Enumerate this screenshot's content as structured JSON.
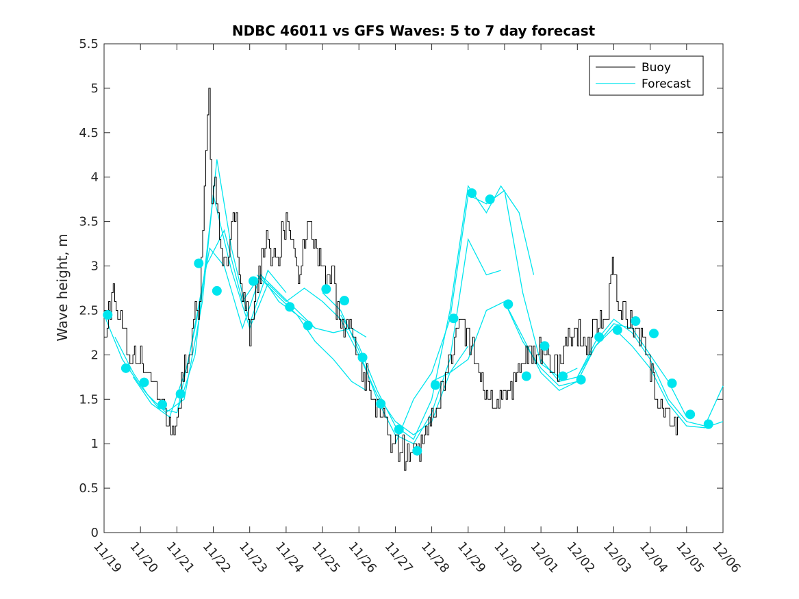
{
  "chart_data": {
    "type": "line",
    "title": "NDBC 46011 vs GFS Waves: 5 to 7 day forecast",
    "xlabel": "",
    "ylabel": "Wave height, m",
    "xlim": [
      0,
      17
    ],
    "ylim": [
      0,
      5.5
    ],
    "xticks": [
      "11/19",
      "11/20",
      "11/21",
      "11/22",
      "11/23",
      "11/24",
      "11/25",
      "11/26",
      "11/27",
      "11/28",
      "11/29",
      "11/30",
      "12/01",
      "12/02",
      "12/03",
      "12/04",
      "12/05",
      "12/06"
    ],
    "yticks": [
      "0",
      "0.5",
      "1",
      "1.5",
      "2",
      "2.5",
      "3",
      "3.5",
      "4",
      "4.5",
      "5",
      "5.5"
    ],
    "legend": [
      "Buoy",
      "Forecast"
    ],
    "legend_position": "top-right",
    "colors": {
      "buoy": "#000000",
      "forecast": "#00e5ee",
      "axis": "#262626"
    },
    "buoy_anchors": [
      [
        0.0,
        2.2
      ],
      [
        0.15,
        2.5
      ],
      [
        0.25,
        2.8
      ],
      [
        0.4,
        2.5
      ],
      [
        0.55,
        2.2
      ],
      [
        0.7,
        2.0
      ],
      [
        0.85,
        2.0
      ],
      [
        1.0,
        1.9
      ],
      [
        1.2,
        1.8
      ],
      [
        1.4,
        1.6
      ],
      [
        1.6,
        1.45
      ],
      [
        1.75,
        1.3
      ],
      [
        1.9,
        1.25
      ],
      [
        2.05,
        1.3
      ],
      [
        2.15,
        1.8
      ],
      [
        2.3,
        2.0
      ],
      [
        2.45,
        2.3
      ],
      [
        2.6,
        2.6
      ],
      [
        2.7,
        3.4
      ],
      [
        2.8,
        4.3
      ],
      [
        2.88,
        5.1
      ],
      [
        2.95,
        3.6
      ],
      [
        3.05,
        4.0
      ],
      [
        3.15,
        3.4
      ],
      [
        3.3,
        3.0
      ],
      [
        3.45,
        3.3
      ],
      [
        3.6,
        3.6
      ],
      [
        3.75,
        2.8
      ],
      [
        3.9,
        2.6
      ],
      [
        4.0,
        2.2
      ],
      [
        4.15,
        2.6
      ],
      [
        4.3,
        3.0
      ],
      [
        4.45,
        3.3
      ],
      [
        4.6,
        3.1
      ],
      [
        4.75,
        3.0
      ],
      [
        4.9,
        3.4
      ],
      [
        5.05,
        3.6
      ],
      [
        5.2,
        3.2
      ],
      [
        5.35,
        2.9
      ],
      [
        5.5,
        3.3
      ],
      [
        5.65,
        3.5
      ],
      [
        5.8,
        3.2
      ],
      [
        5.95,
        3.0
      ],
      [
        6.1,
        2.8
      ],
      [
        6.25,
        3.0
      ],
      [
        6.4,
        2.5
      ],
      [
        6.55,
        2.3
      ],
      [
        6.7,
        2.4
      ],
      [
        6.85,
        2.1
      ],
      [
        7.0,
        1.9
      ],
      [
        7.15,
        1.8
      ],
      [
        7.3,
        1.6
      ],
      [
        7.45,
        1.4
      ],
      [
        7.6,
        1.35
      ],
      [
        7.75,
        1.2
      ],
      [
        7.9,
        1.05
      ],
      [
        8.05,
        0.95
      ],
      [
        8.25,
        0.9
      ],
      [
        8.45,
        0.88
      ],
      [
        8.6,
        0.9
      ],
      [
        8.75,
        1.05
      ],
      [
        8.9,
        1.2
      ],
      [
        9.05,
        1.35
      ],
      [
        9.2,
        1.5
      ],
      [
        9.35,
        1.7
      ],
      [
        9.5,
        1.95
      ],
      [
        9.65,
        2.2
      ],
      [
        9.8,
        2.35
      ],
      [
        9.95,
        2.15
      ],
      [
        10.1,
        2.1
      ],
      [
        10.25,
        1.9
      ],
      [
        10.4,
        1.6
      ],
      [
        10.55,
        1.5
      ],
      [
        10.7,
        1.45
      ],
      [
        10.85,
        1.5
      ],
      [
        11.0,
        1.55
      ],
      [
        11.15,
        1.6
      ],
      [
        11.3,
        1.7
      ],
      [
        11.45,
        1.85
      ],
      [
        11.6,
        2.0
      ],
      [
        11.75,
        2.1
      ],
      [
        11.9,
        2.0
      ],
      [
        12.05,
        2.1
      ],
      [
        12.2,
        1.95
      ],
      [
        12.35,
        1.8
      ],
      [
        12.5,
        1.85
      ],
      [
        12.65,
        2.05
      ],
      [
        12.8,
        2.25
      ],
      [
        12.95,
        2.3
      ],
      [
        13.1,
        2.2
      ],
      [
        13.25,
        2.1
      ],
      [
        13.4,
        2.2
      ],
      [
        13.55,
        2.35
      ],
      [
        13.7,
        2.3
      ],
      [
        13.85,
        2.55
      ],
      [
        13.95,
        3.1
      ],
      [
        14.05,
        2.7
      ],
      [
        14.2,
        2.5
      ],
      [
        14.35,
        2.45
      ],
      [
        14.5,
        2.4
      ],
      [
        14.65,
        2.25
      ],
      [
        14.8,
        2.1
      ],
      [
        14.95,
        1.9
      ],
      [
        15.1,
        1.7
      ],
      [
        15.25,
        1.5
      ],
      [
        15.4,
        1.35
      ],
      [
        15.55,
        1.3
      ],
      [
        15.7,
        1.2
      ],
      [
        15.82,
        1.15
      ]
    ],
    "forecast_series": [
      [
        [
          0.0,
          2.45
        ],
        [
          0.5,
          1.95
        ],
        [
          1.0,
          1.65
        ],
        [
          1.5,
          1.4
        ],
        [
          2.0,
          1.35
        ],
        [
          2.5,
          2.0
        ],
        [
          3.0,
          3.8
        ],
        [
          3.5,
          2.95
        ],
        [
          4.0,
          2.3
        ],
        [
          4.5,
          2.8
        ],
        [
          5.0,
          2.6
        ]
      ],
      [
        [
          0.3,
          2.2
        ],
        [
          0.8,
          1.8
        ],
        [
          1.2,
          1.55
        ],
        [
          1.7,
          1.35
        ],
        [
          2.2,
          1.5
        ],
        [
          2.7,
          2.6
        ],
        [
          3.1,
          4.2
        ],
        [
          3.5,
          3.2
        ],
        [
          4.0,
          2.35
        ],
        [
          4.5,
          2.95
        ],
        [
          5.0,
          2.7
        ]
      ],
      [
        [
          0.8,
          1.75
        ],
        [
          1.3,
          1.45
        ],
        [
          1.8,
          1.3
        ],
        [
          2.3,
          1.9
        ],
        [
          2.8,
          3.0
        ],
        [
          3.3,
          3.4
        ],
        [
          3.8,
          2.6
        ],
        [
          4.3,
          2.9
        ],
        [
          4.8,
          2.7
        ],
        [
          5.3,
          2.5
        ],
        [
          5.8,
          2.3
        ]
      ],
      [
        [
          2.0,
          1.35
        ],
        [
          2.5,
          2.3
        ],
        [
          2.9,
          3.2
        ],
        [
          3.3,
          3.0
        ],
        [
          3.8,
          2.3
        ],
        [
          4.3,
          2.9
        ],
        [
          4.8,
          2.6
        ],
        [
          5.3,
          2.45
        ],
        [
          5.8,
          2.3
        ],
        [
          6.3,
          2.25
        ],
        [
          6.8,
          2.3
        ],
        [
          7.2,
          2.2
        ]
      ],
      [
        [
          4.2,
          2.9
        ],
        [
          4.8,
          2.65
        ],
        [
          5.3,
          2.45
        ],
        [
          5.8,
          2.15
        ],
        [
          6.3,
          1.95
        ],
        [
          6.8,
          1.7
        ],
        [
          7.2,
          1.6
        ]
      ],
      [
        [
          5.0,
          2.6
        ],
        [
          5.5,
          2.75
        ],
        [
          6.0,
          2.6
        ],
        [
          6.5,
          2.4
        ],
        [
          7.0,
          2.0
        ],
        [
          7.5,
          1.55
        ],
        [
          8.0,
          1.25
        ],
        [
          8.5,
          1.1
        ],
        [
          9.0,
          1.25
        ],
        [
          9.5,
          1.8
        ],
        [
          10.0,
          2.1
        ]
      ],
      [
        [
          6.0,
          2.7
        ],
        [
          6.5,
          2.5
        ],
        [
          7.0,
          2.05
        ],
        [
          7.5,
          1.5
        ],
        [
          8.0,
          1.1
        ],
        [
          8.5,
          1.0
        ],
        [
          9.0,
          1.35
        ],
        [
          9.5,
          1.95
        ],
        [
          10.0,
          3.3
        ],
        [
          10.5,
          2.9
        ],
        [
          10.9,
          2.95
        ]
      ],
      [
        [
          6.5,
          2.45
        ],
        [
          7.0,
          2.1
        ],
        [
          7.5,
          1.6
        ],
        [
          8.0,
          1.2
        ],
        [
          8.5,
          1.05
        ],
        [
          9.0,
          1.5
        ],
        [
          9.5,
          2.5
        ],
        [
          10.0,
          3.9
        ],
        [
          10.5,
          3.6
        ],
        [
          10.9,
          3.9
        ],
        [
          11.4,
          3.6
        ],
        [
          11.8,
          2.9
        ]
      ],
      [
        [
          8.0,
          1.0
        ],
        [
          8.5,
          1.5
        ],
        [
          9.0,
          1.8
        ],
        [
          9.5,
          2.4
        ],
        [
          10.0,
          3.8
        ],
        [
          10.5,
          3.7
        ],
        [
          11.0,
          3.85
        ],
        [
          11.5,
          2.7
        ],
        [
          12.0,
          1.9
        ],
        [
          12.5,
          1.75
        ],
        [
          13.0,
          1.85
        ]
      ],
      [
        [
          9.0,
          1.7
        ],
        [
          9.5,
          1.8
        ],
        [
          10.0,
          1.95
        ],
        [
          10.5,
          2.5
        ],
        [
          11.0,
          2.6
        ],
        [
          11.5,
          2.15
        ],
        [
          12.0,
          1.85
        ],
        [
          12.5,
          1.65
        ],
        [
          13.0,
          1.7
        ],
        [
          13.5,
          2.1
        ],
        [
          14.0,
          2.35
        ]
      ],
      [
        [
          11.0,
          2.6
        ],
        [
          11.5,
          2.2
        ],
        [
          12.0,
          1.8
        ],
        [
          12.5,
          1.6
        ],
        [
          13.0,
          1.7
        ],
        [
          13.5,
          2.1
        ],
        [
          14.0,
          2.35
        ],
        [
          14.5,
          2.3
        ],
        [
          15.0,
          2.0
        ],
        [
          15.5,
          1.7
        ],
        [
          16.0,
          1.3
        ]
      ],
      [
        [
          12.0,
          1.95
        ],
        [
          12.5,
          1.7
        ],
        [
          13.0,
          1.75
        ],
        [
          13.5,
          2.15
        ],
        [
          14.0,
          2.4
        ],
        [
          14.5,
          2.25
        ],
        [
          15.0,
          1.95
        ],
        [
          15.5,
          1.5
        ],
        [
          16.0,
          1.25
        ],
        [
          16.5,
          1.2
        ],
        [
          17.0,
          1.65
        ]
      ],
      [
        [
          13.0,
          1.75
        ],
        [
          13.5,
          2.1
        ],
        [
          14.0,
          2.3
        ],
        [
          14.5,
          2.1
        ],
        [
          15.0,
          1.85
        ],
        [
          15.5,
          1.45
        ],
        [
          16.0,
          1.2
        ],
        [
          16.5,
          1.18
        ],
        [
          17.0,
          1.25
        ]
      ]
    ],
    "forecast_markers": [
      [
        0.1,
        2.45
      ],
      [
        0.6,
        1.85
      ],
      [
        1.1,
        1.69
      ],
      [
        1.6,
        1.44
      ],
      [
        2.1,
        1.56
      ],
      [
        2.6,
        3.03
      ],
      [
        3.1,
        2.72
      ],
      [
        4.1,
        2.83
      ],
      [
        5.1,
        2.54
      ],
      [
        5.6,
        2.33
      ],
      [
        6.1,
        2.74
      ],
      [
        6.6,
        2.61
      ],
      [
        7.1,
        1.97
      ],
      [
        7.6,
        1.45
      ],
      [
        8.1,
        1.16
      ],
      [
        8.6,
        0.92
      ],
      [
        9.1,
        1.66
      ],
      [
        9.6,
        2.41
      ],
      [
        10.1,
        3.82
      ],
      [
        10.6,
        3.75
      ],
      [
        11.1,
        2.57
      ],
      [
        11.6,
        1.76
      ],
      [
        12.1,
        2.1
      ],
      [
        12.6,
        1.76
      ],
      [
        13.1,
        1.72
      ],
      [
        13.6,
        2.2
      ],
      [
        14.1,
        2.28
      ],
      [
        14.6,
        2.38
      ],
      [
        15.1,
        2.24
      ],
      [
        15.6,
        1.68
      ],
      [
        16.1,
        1.33
      ],
      [
        16.6,
        1.22
      ]
    ]
  }
}
